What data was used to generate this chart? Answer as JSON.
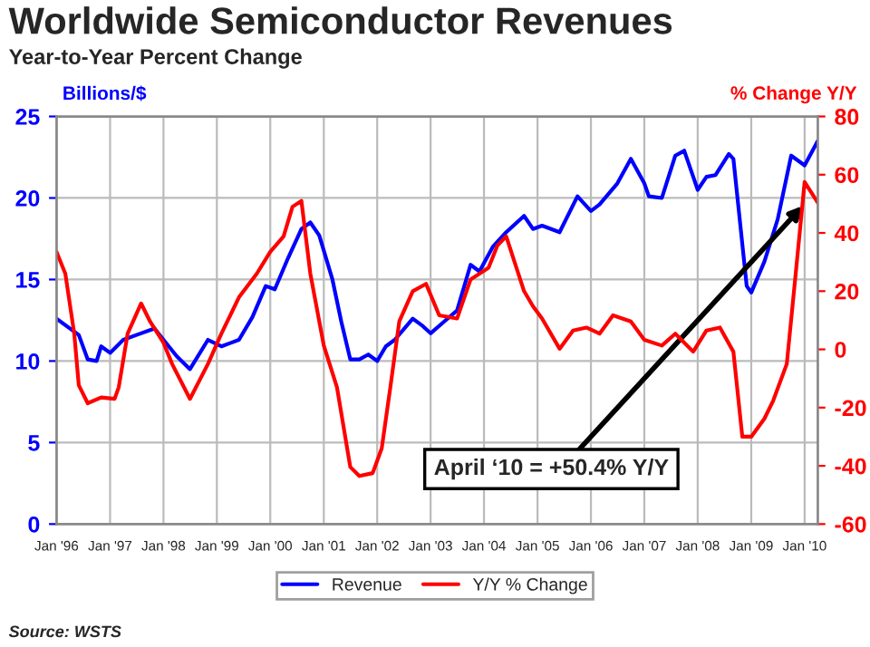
{
  "chart_data": {
    "type": "line",
    "title": "Worldwide Semiconductor Revenues",
    "subtitle": "Year-to-Year Percent Change",
    "ylabel": "Billions/$",
    "y2label": "% Change Y/Y",
    "annotations": [
      "April ‘10 = +50.4% Y/Y",
      "Source: WSTS"
    ],
    "xlim": [
      "1996-01",
      "2010-04"
    ],
    "xticks": [
      {
        "value": "1996-01",
        "label": "Jan '96"
      },
      {
        "value": "1997-01",
        "label": "Jan '97"
      },
      {
        "value": "1998-01",
        "label": "Jan '98"
      },
      {
        "value": "1999-01",
        "label": "Jan '99"
      },
      {
        "value": "2000-01",
        "label": "Jan '00"
      },
      {
        "value": "2001-01",
        "label": "Jan '01"
      },
      {
        "value": "2002-01",
        "label": "Jan '02"
      },
      {
        "value": "2003-01",
        "label": "Jan '03"
      },
      {
        "value": "2004-01",
        "label": "Jan '04"
      },
      {
        "value": "2005-01",
        "label": "Jan '05"
      },
      {
        "value": "2006-01",
        "label": "Jan '06"
      },
      {
        "value": "2007-01",
        "label": "Jan '07"
      },
      {
        "value": "2008-01",
        "label": "Jan '08"
      },
      {
        "value": "2009-01",
        "label": "Jan '09"
      },
      {
        "value": "2010-01",
        "label": "Jan '10"
      }
    ],
    "ylim": [
      0,
      25
    ],
    "yticks": [
      0,
      5,
      10,
      15,
      20,
      25
    ],
    "y2lim": [
      -60,
      80
    ],
    "y2ticks": [
      -60,
      -40,
      -20,
      0,
      20,
      40,
      60,
      80
    ],
    "grid": true,
    "legend": "bottom",
    "line_style": "solid",
    "series": [
      {
        "name": "Revenue",
        "color": "#0000ff",
        "x": [
          "1996-01",
          "1996-06",
          "1996-08",
          "1996-10",
          "1996-11",
          "1997-01",
          "1997-04",
          "1997-07",
          "1997-11",
          "1998-01",
          "1998-04",
          "1998-07",
          "1998-11",
          "1999-02",
          "1999-06",
          "1999-09",
          "1999-12",
          "2000-02",
          "2000-05",
          "2000-08",
          "2000-10",
          "2000-12",
          "2001-03",
          "2001-05",
          "2001-07",
          "2001-09",
          "2001-11",
          "2002-01",
          "2002-03",
          "2002-05",
          "2002-09",
          "2002-11",
          "2003-01",
          "2003-04",
          "2003-07",
          "2003-10",
          "2003-12",
          "2004-03",
          "2004-06",
          "2004-10",
          "2004-12",
          "2005-02",
          "2005-06",
          "2005-10",
          "2006-01",
          "2006-03",
          "2006-07",
          "2006-10",
          "2007-01",
          "2007-02",
          "2007-05",
          "2007-08",
          "2007-10",
          "2008-01",
          "2008-03",
          "2008-05",
          "2008-08",
          "2008-09",
          "2008-12",
          "2009-01",
          "2009-04",
          "2009-07",
          "2009-10",
          "2010-01",
          "2010-04"
        ],
        "values": [
          12.6,
          11.6,
          10.1,
          10.0,
          10.9,
          10.5,
          11.3,
          11.6,
          12.0,
          11.3,
          10.3,
          9.5,
          11.3,
          10.9,
          11.3,
          12.7,
          14.6,
          14.4,
          16.3,
          18.1,
          18.5,
          17.7,
          15.0,
          12.4,
          10.1,
          10.1,
          10.4,
          10.0,
          10.9,
          11.3,
          12.6,
          12.2,
          11.7,
          12.4,
          13.1,
          15.9,
          15.5,
          17.0,
          17.9,
          18.9,
          18.1,
          18.3,
          17.9,
          20.1,
          19.2,
          19.6,
          20.9,
          22.4,
          20.9,
          20.1,
          20.0,
          22.6,
          22.9,
          20.5,
          21.3,
          21.4,
          22.7,
          22.4,
          14.6,
          14.2,
          16.1,
          18.7,
          22.6,
          22.0,
          23.5
        ]
      },
      {
        "name": "Y/Y % Change",
        "color": "#ff0000",
        "axis": "y2",
        "x": [
          "1996-01",
          "1996-03",
          "1996-05",
          "1996-06",
          "1996-08",
          "1996-11",
          "1997-02",
          "1997-03",
          "1997-05",
          "1997-08",
          "1997-10",
          "1998-01",
          "1998-03",
          "1998-07",
          "1998-11",
          "1999-02",
          "1999-06",
          "1999-10",
          "2000-01",
          "2000-04",
          "2000-06",
          "2000-08",
          "2000-10",
          "2001-01",
          "2001-04",
          "2001-07",
          "2001-09",
          "2001-12",
          "2002-02",
          "2002-04",
          "2002-06",
          "2002-09",
          "2002-12",
          "2003-03",
          "2003-07",
          "2003-10",
          "2004-02",
          "2004-04",
          "2004-06",
          "2004-10",
          "2004-12",
          "2005-02",
          "2005-06",
          "2005-09",
          "2005-12",
          "2006-03",
          "2006-06",
          "2006-10",
          "2007-01",
          "2007-05",
          "2007-08",
          "2007-12",
          "2008-03",
          "2008-06",
          "2008-09",
          "2008-11",
          "2009-01",
          "2009-04",
          "2009-06",
          "2009-09",
          "2009-11",
          "2010-01",
          "2010-04"
        ],
        "values": [
          33.5,
          26,
          5.4,
          -12.3,
          -18.5,
          -16.5,
          -17,
          -13,
          5.4,
          15.8,
          9.6,
          2.3,
          -5,
          -17,
          -5,
          5.4,
          17.9,
          26,
          33.5,
          38.8,
          49,
          51,
          26,
          1.3,
          -13,
          -40.4,
          -43.5,
          -42.5,
          -34,
          -13,
          9.6,
          20,
          22.5,
          11.7,
          10.6,
          24,
          28,
          35.6,
          38.8,
          20,
          14.8,
          10.6,
          0.2,
          6.5,
          7.5,
          5.4,
          11.7,
          9.6,
          3.3,
          1.3,
          5.4,
          -0.8,
          6.5,
          7.5,
          -0.8,
          -30,
          -30,
          -23.8,
          -17.5,
          -5,
          26,
          57.5,
          50.4
        ]
      }
    ]
  }
}
